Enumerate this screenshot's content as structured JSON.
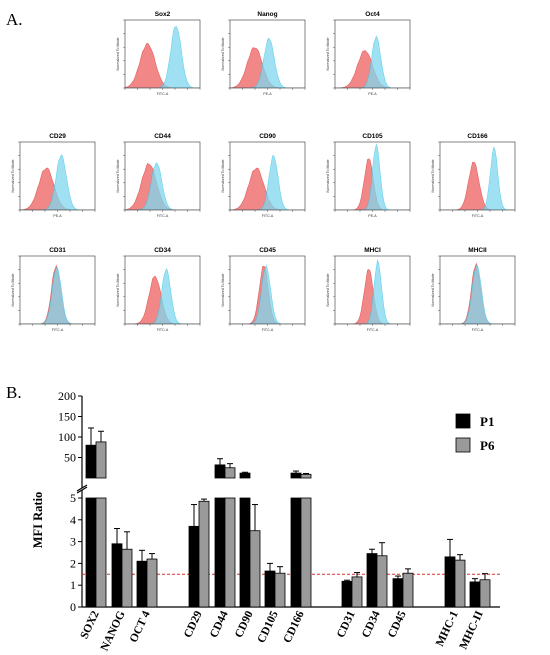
{
  "figure": {
    "panel_a_label": "A.",
    "panel_b_label": "B."
  },
  "histograms": [
    {
      "title": "Sox2",
      "xlabel": "FITC-A",
      "ylabel": "Normalized To Mode",
      "red_peak": 0.3,
      "blue_peak": 0.68,
      "red_h": 0.65,
      "blue_h": 0.92,
      "red_w": 0.1,
      "blue_w": 0.07
    },
    {
      "title": "Nanog",
      "xlabel": "PE-A",
      "ylabel": "Normalized To Mode",
      "red_peak": 0.33,
      "blue_peak": 0.52,
      "red_h": 0.6,
      "blue_h": 0.72,
      "red_w": 0.1,
      "blue_w": 0.07
    },
    {
      "title": "Oct4",
      "xlabel": "PE-A",
      "ylabel": "Normalized To Mode",
      "red_peak": 0.4,
      "blue_peak": 0.55,
      "red_h": 0.55,
      "blue_h": 0.75,
      "red_w": 0.1,
      "blue_w": 0.06
    },
    {
      "title": "CD29",
      "xlabel": "PE-A",
      "ylabel": "Normalized To Mode",
      "red_peak": 0.35,
      "blue_peak": 0.55,
      "red_h": 0.62,
      "blue_h": 0.8,
      "red_w": 0.1,
      "blue_w": 0.07
    },
    {
      "title": "CD44",
      "xlabel": "FITC-A",
      "ylabel": "Normalized To Mode",
      "red_peak": 0.32,
      "blue_peak": 0.42,
      "red_h": 0.68,
      "blue_h": 0.7,
      "red_w": 0.1,
      "blue_w": 0.07
    },
    {
      "title": "CD90",
      "xlabel": "FITC-A",
      "ylabel": "Normalized To Mode",
      "red_peak": 0.35,
      "blue_peak": 0.58,
      "red_h": 0.62,
      "blue_h": 0.8,
      "red_w": 0.1,
      "blue_w": 0.06
    },
    {
      "title": "CD105",
      "xlabel": "PE-A",
      "ylabel": "Normalized To Mode",
      "red_peak": 0.45,
      "blue_peak": 0.55,
      "red_h": 0.75,
      "blue_h": 0.95,
      "red_w": 0.06,
      "blue_w": 0.05
    },
    {
      "title": "CD166",
      "xlabel": "FITC-A",
      "ylabel": "Normalized To Mode",
      "red_peak": 0.45,
      "blue_peak": 0.72,
      "red_h": 0.7,
      "blue_h": 0.9,
      "red_w": 0.07,
      "blue_w": 0.05
    },
    {
      "title": "CD31",
      "xlabel": "FITC-A",
      "ylabel": "Normalized To Mode",
      "red_peak": 0.48,
      "blue_peak": 0.49,
      "red_h": 0.85,
      "blue_h": 0.85,
      "red_w": 0.06,
      "blue_w": 0.06
    },
    {
      "title": "CD34",
      "xlabel": "FITC-A",
      "ylabel": "Normalized To Mode",
      "red_peak": 0.4,
      "blue_peak": 0.55,
      "red_h": 0.7,
      "blue_h": 0.8,
      "red_w": 0.08,
      "blue_w": 0.06
    },
    {
      "title": "CD45",
      "xlabel": "FITC-A",
      "ylabel": "Normalized To Mode",
      "red_peak": 0.45,
      "blue_peak": 0.48,
      "red_h": 0.85,
      "blue_h": 0.85,
      "red_w": 0.06,
      "blue_w": 0.06
    },
    {
      "title": "MHCI",
      "xlabel": "FITC-A",
      "ylabel": "Normalized To Mode",
      "red_peak": 0.45,
      "blue_peak": 0.57,
      "red_h": 0.8,
      "blue_h": 0.92,
      "red_w": 0.06,
      "blue_w": 0.05
    },
    {
      "title": "MHCII",
      "xlabel": "FITC-A",
      "ylabel": "Normalized To Mode",
      "red_peak": 0.48,
      "blue_peak": 0.49,
      "red_h": 0.88,
      "blue_h": 0.88,
      "red_w": 0.06,
      "blue_w": 0.06
    }
  ],
  "colors": {
    "red_fill": "#f07b7b",
    "red_line": "#e0504f",
    "blue_fill": "#7fd8ee",
    "blue_line": "#33c3e6",
    "overlap": "#8a94a8",
    "p1": "#000000",
    "p6": "#9a9a9a",
    "threshold": "#d9322f"
  },
  "chart_data": {
    "type": "bar",
    "ylabel": "MFI Ratio",
    "upper_ticks": [
      50,
      100,
      150,
      200
    ],
    "lower_ticks": [
      0,
      1,
      2,
      3,
      4,
      5
    ],
    "upper_range": [
      0,
      200
    ],
    "lower_range": [
      0,
      5
    ],
    "threshold": 1.5,
    "legend_position": "right",
    "categories": [
      "SOX2",
      "NANOG",
      "OCT 4",
      "CD29",
      "CD44",
      "CD90",
      "CD105",
      "CD166",
      "CD31",
      "CD34",
      "CD45",
      "MHC-1",
      "MHC-II"
    ],
    "series": [
      {
        "name": "P1",
        "values": [
          80,
          2.9,
          2.1,
          3.7,
          32,
          12,
          1.65,
          12,
          1.18,
          2.45,
          1.3,
          2.3,
          1.15
        ],
        "errors": [
          42,
          0.7,
          0.5,
          1.0,
          15,
          2,
          0.35,
          5,
          0.05,
          0.2,
          0.12,
          0.8,
          0.15
        ]
      },
      {
        "name": "P6",
        "values": [
          88,
          2.65,
          2.2,
          4.85,
          25,
          3.5,
          1.55,
          9,
          1.38,
          2.35,
          1.55,
          2.15,
          1.25
        ],
        "errors": [
          26,
          0.8,
          0.25,
          0.1,
          10,
          1.2,
          0.3,
          2,
          0.2,
          0.6,
          0.2,
          0.25,
          0.28
        ]
      }
    ]
  }
}
